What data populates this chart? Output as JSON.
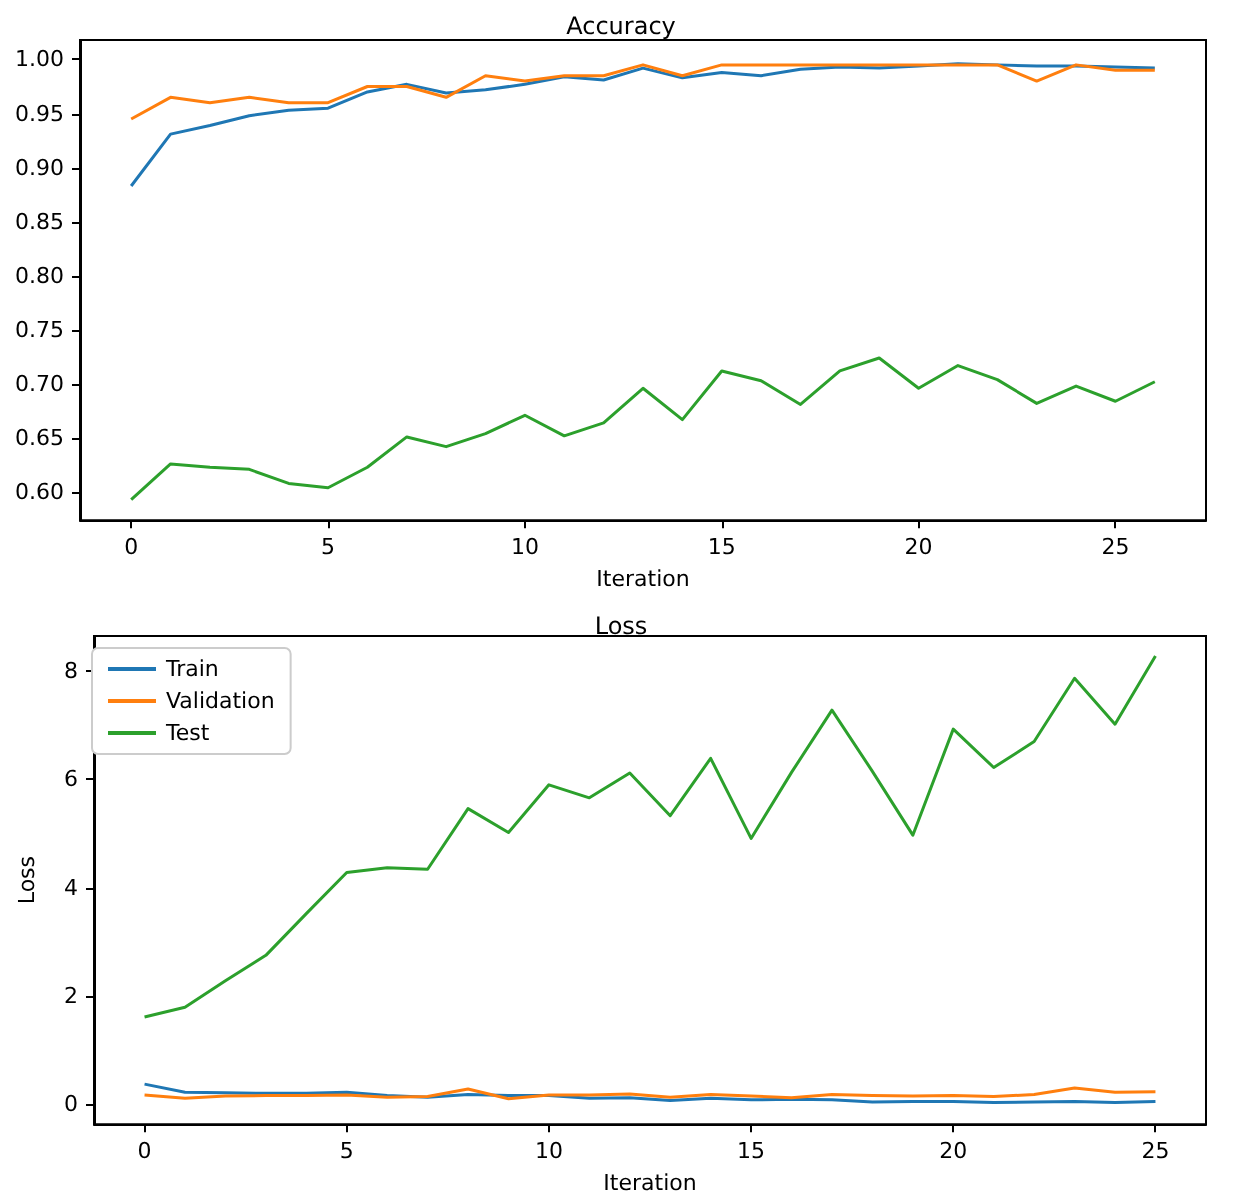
{
  "chart_data": [
    {
      "type": "line",
      "title": "Accuracy",
      "xlabel": "Iteration",
      "x": [
        0,
        1,
        2,
        3,
        4,
        5,
        6,
        7,
        8,
        9,
        10,
        11,
        12,
        13,
        14,
        15,
        16,
        17,
        18,
        19,
        20,
        21,
        22,
        23,
        24,
        25,
        26
      ],
      "xlim": [
        -1.3,
        27.3
      ],
      "xticks": [
        0,
        5,
        10,
        15,
        20,
        25
      ],
      "ylim": [
        0.574,
        1.018
      ],
      "yticks": [
        {
          "value": 0.6,
          "label": "0.60"
        },
        {
          "value": 0.65,
          "label": "0.65"
        },
        {
          "value": 0.7,
          "label": "0.70"
        },
        {
          "value": 0.75,
          "label": "0.75"
        },
        {
          "value": 0.8,
          "label": "0.80"
        },
        {
          "value": 0.85,
          "label": "0.85"
        },
        {
          "value": 0.9,
          "label": "0.90"
        },
        {
          "value": 0.95,
          "label": "0.95"
        },
        {
          "value": 1.0,
          "label": "1.00"
        }
      ],
      "series": [
        {
          "color": "#1f77b4",
          "values": [
            0.883,
            0.931,
            0.939,
            0.948,
            0.953,
            0.955,
            0.97,
            0.977,
            0.969,
            0.972,
            0.977,
            0.984,
            0.981,
            0.992,
            0.983,
            0.988,
            0.985,
            0.991,
            0.993,
            0.992,
            0.994,
            0.996,
            0.995,
            0.994,
            0.994,
            0.993,
            0.992
          ]
        },
        {
          "color": "#ff7f0e",
          "values": [
            0.945,
            0.965,
            0.96,
            0.965,
            0.96,
            0.96,
            0.975,
            0.975,
            0.965,
            0.985,
            0.98,
            0.985,
            0.985,
            0.995,
            0.985,
            0.995,
            0.995,
            0.995,
            0.995,
            0.995,
            0.995,
            0.995,
            0.995,
            0.98,
            0.995,
            0.99,
            0.99
          ]
        },
        {
          "color": "#2ca02c",
          "values": [
            0.593,
            0.626,
            0.623,
            0.621,
            0.608,
            0.604,
            0.623,
            0.651,
            0.642,
            0.654,
            0.671,
            0.652,
            0.664,
            0.696,
            0.667,
            0.712,
            0.703,
            0.681,
            0.712,
            0.724,
            0.696,
            0.717,
            0.704,
            0.682,
            0.698,
            0.684,
            0.702
          ]
        }
      ]
    },
    {
      "type": "line",
      "title": "Loss",
      "xlabel": "Iteration",
      "ylabel": "Loss",
      "legend": "top left",
      "x": [
        0,
        1,
        2,
        3,
        4,
        5,
        6,
        7,
        8,
        9,
        10,
        11,
        12,
        13,
        14,
        15,
        16,
        17,
        18,
        19,
        20,
        21,
        22,
        23,
        24,
        25
      ],
      "xlim": [
        -1.25,
        26.25
      ],
      "xticks": [
        0,
        5,
        10,
        15,
        20,
        25
      ],
      "ylim": [
        -0.37,
        8.65
      ],
      "yticks": [
        0,
        2,
        4,
        6,
        8
      ],
      "series": [
        {
          "name": "Train",
          "color": "#1f77b4",
          "values": [
            0.37,
            0.22,
            0.21,
            0.2,
            0.2,
            0.22,
            0.16,
            0.13,
            0.18,
            0.16,
            0.16,
            0.11,
            0.12,
            0.07,
            0.11,
            0.08,
            0.09,
            0.08,
            0.04,
            0.05,
            0.05,
            0.03,
            0.04,
            0.05,
            0.03,
            0.05
          ]
        },
        {
          "name": "Validation",
          "color": "#ff7f0e",
          "values": [
            0.17,
            0.11,
            0.15,
            0.16,
            0.16,
            0.17,
            0.13,
            0.14,
            0.28,
            0.1,
            0.17,
            0.17,
            0.19,
            0.13,
            0.18,
            0.15,
            0.12,
            0.18,
            0.16,
            0.15,
            0.16,
            0.14,
            0.18,
            0.3,
            0.22,
            0.23
          ]
        },
        {
          "name": "Test",
          "color": "#2ca02c",
          "values": [
            1.61,
            1.79,
            2.28,
            2.75,
            3.52,
            4.28,
            4.37,
            4.34,
            5.46,
            5.02,
            5.9,
            5.66,
            6.12,
            5.33,
            6.39,
            4.91,
            6.13,
            7.28,
            6.15,
            4.97,
            6.93,
            6.22,
            6.7,
            7.87,
            7.02,
            8.28
          ]
        }
      ]
    }
  ]
}
